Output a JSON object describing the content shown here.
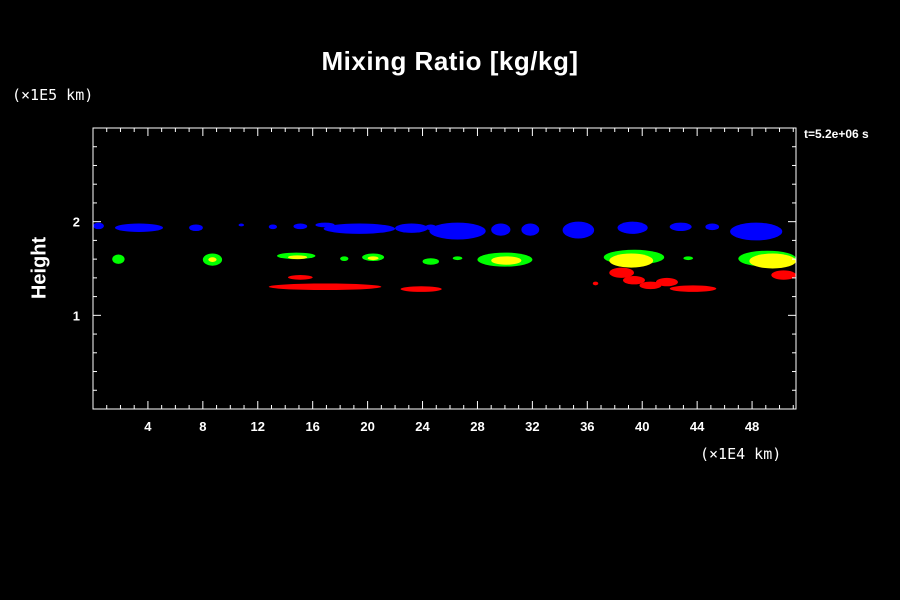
{
  "chart_data": {
    "type": "heatmap",
    "title": "Mixing Ratio [kg/kg]",
    "ylabel": "Height",
    "x_unit": "(×1E4 km)",
    "y_unit": "(×1E5 km)",
    "timestamp": "t=5.2e+06 s",
    "xlim": [
      0,
      51.2
    ],
    "ylim": [
      0,
      3.0
    ],
    "x_ticks": [
      4,
      8,
      12,
      16,
      20,
      24,
      28,
      32,
      36,
      40,
      44,
      48
    ],
    "y_ticks": [
      1,
      2
    ],
    "grid": false,
    "legend": "none",
    "colors": {
      "blue": "#0000ff",
      "green": "#00ff00",
      "yellow": "#ffff00",
      "red": "#ff0000"
    },
    "regions": [
      {
        "color": "blue",
        "x0": 0.0,
        "x1": 0.8,
        "y0": 1.92,
        "y1": 1.99
      },
      {
        "color": "blue",
        "x0": 1.6,
        "x1": 5.1,
        "y0": 1.89,
        "y1": 1.98
      },
      {
        "color": "blue",
        "x0": 7.0,
        "x1": 8.0,
        "y0": 1.9,
        "y1": 1.97
      },
      {
        "color": "blue",
        "x0": 10.6,
        "x1": 11.0,
        "y0": 1.95,
        "y1": 1.98
      },
      {
        "color": "blue",
        "x0": 12.8,
        "x1": 13.4,
        "y0": 1.92,
        "y1": 1.97
      },
      {
        "color": "blue",
        "x0": 14.6,
        "x1": 15.6,
        "y0": 1.92,
        "y1": 1.98
      },
      {
        "color": "blue",
        "x0": 16.2,
        "x1": 17.6,
        "y0": 1.94,
        "y1": 1.99
      },
      {
        "color": "blue",
        "x0": 16.8,
        "x1": 22.0,
        "y0": 1.87,
        "y1": 1.98
      },
      {
        "color": "blue",
        "x0": 22.0,
        "x1": 24.4,
        "y0": 1.88,
        "y1": 1.98
      },
      {
        "color": "blue",
        "x0": 24.2,
        "x1": 25.0,
        "y0": 1.91,
        "y1": 1.97
      },
      {
        "color": "blue",
        "x0": 24.5,
        "x1": 28.6,
        "y0": 1.81,
        "y1": 1.99
      },
      {
        "color": "blue",
        "x0": 29.0,
        "x1": 30.4,
        "y0": 1.85,
        "y1": 1.98
      },
      {
        "color": "blue",
        "x0": 31.2,
        "x1": 32.5,
        "y0": 1.85,
        "y1": 1.98
      },
      {
        "color": "blue",
        "x0": 34.2,
        "x1": 36.5,
        "y0": 1.82,
        "y1": 2.0
      },
      {
        "color": "blue",
        "x0": 38.2,
        "x1": 40.4,
        "y0": 1.87,
        "y1": 2.0
      },
      {
        "color": "blue",
        "x0": 42.0,
        "x1": 43.6,
        "y0": 1.9,
        "y1": 1.99
      },
      {
        "color": "blue",
        "x0": 44.6,
        "x1": 45.6,
        "y0": 1.91,
        "y1": 1.98
      },
      {
        "color": "blue",
        "x0": 46.4,
        "x1": 50.2,
        "y0": 1.8,
        "y1": 1.99
      },
      {
        "color": "green",
        "x0": 1.4,
        "x1": 2.3,
        "y0": 1.55,
        "y1": 1.65
      },
      {
        "color": "green",
        "x0": 8.0,
        "x1": 9.4,
        "y0": 1.53,
        "y1": 1.66
      },
      {
        "color": "yellow",
        "x0": 8.4,
        "x1": 9.0,
        "y0": 1.57,
        "y1": 1.62
      },
      {
        "color": "green",
        "x0": 13.4,
        "x1": 16.2,
        "y0": 1.6,
        "y1": 1.67
      },
      {
        "color": "yellow",
        "x0": 14.2,
        "x1": 15.6,
        "y0": 1.6,
        "y1": 1.64
      },
      {
        "color": "green",
        "x0": 18.0,
        "x1": 18.6,
        "y0": 1.58,
        "y1": 1.63
      },
      {
        "color": "green",
        "x0": 19.6,
        "x1": 21.2,
        "y0": 1.58,
        "y1": 1.66
      },
      {
        "color": "yellow",
        "x0": 20.0,
        "x1": 20.8,
        "y0": 1.59,
        "y1": 1.63
      },
      {
        "color": "green",
        "x0": 24.0,
        "x1": 25.2,
        "y0": 1.54,
        "y1": 1.61
      },
      {
        "color": "green",
        "x0": 26.2,
        "x1": 26.9,
        "y0": 1.59,
        "y1": 1.63
      },
      {
        "color": "green",
        "x0": 28.0,
        "x1": 32.0,
        "y0": 1.52,
        "y1": 1.67
      },
      {
        "color": "yellow",
        "x0": 29.0,
        "x1": 31.2,
        "y0": 1.54,
        "y1": 1.63
      },
      {
        "color": "green",
        "x0": 37.2,
        "x1": 41.6,
        "y0": 1.54,
        "y1": 1.7
      },
      {
        "color": "yellow",
        "x0": 37.6,
        "x1": 40.8,
        "y0": 1.51,
        "y1": 1.66
      },
      {
        "color": "green",
        "x0": 43.0,
        "x1": 43.7,
        "y0": 1.59,
        "y1": 1.63
      },
      {
        "color": "green",
        "x0": 47.0,
        "x1": 51.2,
        "y0": 1.52,
        "y1": 1.69
      },
      {
        "color": "yellow",
        "x0": 47.8,
        "x1": 51.2,
        "y0": 1.5,
        "y1": 1.66
      },
      {
        "color": "red",
        "x0": 14.2,
        "x1": 16.0,
        "y0": 1.38,
        "y1": 1.43
      },
      {
        "color": "red",
        "x0": 12.8,
        "x1": 21.0,
        "y0": 1.27,
        "y1": 1.34
      },
      {
        "color": "red",
        "x0": 22.4,
        "x1": 25.4,
        "y0": 1.25,
        "y1": 1.31
      },
      {
        "color": "red",
        "x0": 36.4,
        "x1": 36.8,
        "y0": 1.32,
        "y1": 1.36
      },
      {
        "color": "red",
        "x0": 37.6,
        "x1": 39.4,
        "y0": 1.4,
        "y1": 1.51
      },
      {
        "color": "red",
        "x0": 38.6,
        "x1": 40.2,
        "y0": 1.33,
        "y1": 1.42
      },
      {
        "color": "red",
        "x0": 39.8,
        "x1": 41.4,
        "y0": 1.28,
        "y1": 1.36
      },
      {
        "color": "red",
        "x0": 41.0,
        "x1": 42.6,
        "y0": 1.31,
        "y1": 1.4
      },
      {
        "color": "red",
        "x0": 42.0,
        "x1": 45.4,
        "y0": 1.25,
        "y1": 1.32
      },
      {
        "color": "red",
        "x0": 49.4,
        "x1": 51.2,
        "y0": 1.38,
        "y1": 1.48
      }
    ]
  }
}
